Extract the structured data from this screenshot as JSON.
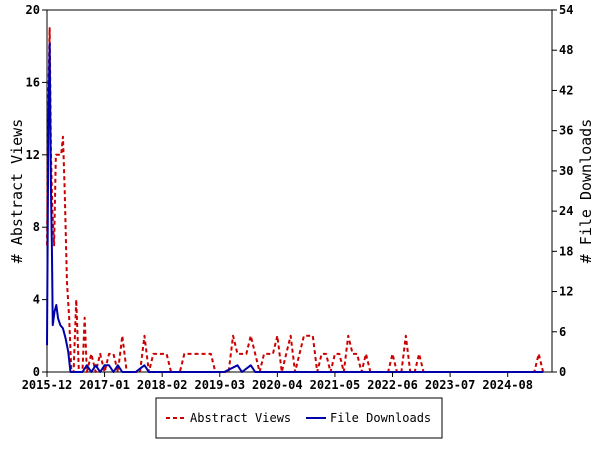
{
  "chart_data": {
    "type": "line",
    "title": "",
    "xlabel": "",
    "ylabel": "# Abstract Views",
    "y2label": "# File Downloads",
    "x_tick_labels": [
      "2015-12",
      "2017-01",
      "2018-02",
      "2019-03",
      "2020-04",
      "2021-05",
      "2022-06",
      "2023-07",
      "2024-08"
    ],
    "xlim_months": [
      0,
      114
    ],
    "ylim": [
      0,
      20
    ],
    "y2lim": [
      0,
      54
    ],
    "yticks": [
      0,
      4,
      8,
      12,
      16,
      20
    ],
    "y2ticks": [
      0,
      6,
      12,
      18,
      24,
      30,
      36,
      42,
      48,
      54
    ],
    "grid": false,
    "legend_position": "bottom",
    "series": [
      {
        "name": "Abstract Views",
        "axis": "left",
        "color": "#cc0000",
        "dash": "dashed",
        "points": [
          [
            0,
            7
          ],
          [
            0.3,
            15
          ],
          [
            0.6,
            19
          ],
          [
            0.9,
            12
          ],
          [
            1.2,
            9
          ],
          [
            1.6,
            7
          ],
          [
            2,
            12
          ],
          [
            2.6,
            12
          ],
          [
            3.2,
            12
          ],
          [
            3.6,
            13
          ],
          [
            4,
            10
          ],
          [
            4.5,
            5
          ],
          [
            5,
            3
          ],
          [
            5.5,
            0
          ],
          [
            6,
            0
          ],
          [
            6.6,
            4
          ],
          [
            7.2,
            0
          ],
          [
            8,
            0
          ],
          [
            8.5,
            3
          ],
          [
            9,
            0
          ],
          [
            10,
            1
          ],
          [
            11,
            0
          ],
          [
            12,
            1
          ],
          [
            13,
            0
          ],
          [
            14,
            1
          ],
          [
            15,
            1
          ],
          [
            16,
            0
          ],
          [
            17,
            2
          ],
          [
            18,
            0
          ],
          [
            19,
            0
          ],
          [
            20,
            0
          ],
          [
            21,
            0
          ],
          [
            22,
            2
          ],
          [
            23,
            0
          ],
          [
            24,
            1
          ],
          [
            25,
            1
          ],
          [
            26,
            1
          ],
          [
            27,
            1
          ],
          [
            28,
            0
          ],
          [
            29,
            0
          ],
          [
            30,
            0
          ],
          [
            31,
            1
          ],
          [
            32,
            1
          ],
          [
            33,
            1
          ],
          [
            34,
            1
          ],
          [
            35,
            1
          ],
          [
            36,
            1
          ],
          [
            37,
            1
          ],
          [
            38,
            0
          ],
          [
            39,
            0
          ],
          [
            40,
            0
          ],
          [
            41,
            0
          ],
          [
            42,
            2
          ],
          [
            43,
            1
          ],
          [
            44,
            1
          ],
          [
            45,
            1
          ],
          [
            46,
            2
          ],
          [
            47,
            1
          ],
          [
            48,
            0
          ],
          [
            49,
            1
          ],
          [
            50,
            1
          ],
          [
            51,
            1
          ],
          [
            52,
            2
          ],
          [
            53,
            0
          ],
          [
            54,
            1
          ],
          [
            55,
            2
          ],
          [
            56,
            0
          ],
          [
            57,
            1
          ],
          [
            58,
            2
          ],
          [
            59,
            2
          ],
          [
            60,
            2
          ],
          [
            61,
            0
          ],
          [
            62,
            1
          ],
          [
            63,
            1
          ],
          [
            64,
            0
          ],
          [
            65,
            1
          ],
          [
            66,
            1
          ],
          [
            67,
            0
          ],
          [
            68,
            2
          ],
          [
            69,
            1
          ],
          [
            70,
            1
          ],
          [
            71,
            0
          ],
          [
            72,
            1
          ],
          [
            73,
            0
          ],
          [
            74,
            0
          ],
          [
            75,
            0
          ],
          [
            76,
            0
          ],
          [
            77,
            0
          ],
          [
            78,
            1
          ],
          [
            79,
            0
          ],
          [
            80,
            0
          ],
          [
            81,
            2
          ],
          [
            82,
            0
          ],
          [
            83,
            0
          ],
          [
            84,
            1
          ],
          [
            85,
            0
          ],
          [
            86,
            0
          ],
          [
            87,
            0
          ],
          [
            88,
            0
          ],
          [
            89,
            0
          ],
          [
            90,
            0
          ],
          [
            91,
            0
          ],
          [
            92,
            0
          ],
          [
            93,
            0
          ],
          [
            94,
            0
          ],
          [
            95,
            0
          ],
          [
            96,
            0
          ],
          [
            97,
            0
          ],
          [
            98,
            0
          ],
          [
            99,
            0
          ],
          [
            100,
            0
          ],
          [
            101,
            0
          ],
          [
            102,
            0
          ],
          [
            103,
            0
          ],
          [
            104,
            0
          ],
          [
            105,
            0
          ],
          [
            106,
            0
          ],
          [
            107,
            0
          ],
          [
            108,
            0
          ],
          [
            109,
            0
          ],
          [
            110,
            0
          ],
          [
            111,
            1
          ],
          [
            112,
            0
          ]
        ]
      },
      {
        "name": "File Downloads",
        "axis": "right",
        "color": "#0000aa",
        "dash": "solid",
        "points": [
          [
            0,
            4
          ],
          [
            0.3,
            36
          ],
          [
            0.6,
            49
          ],
          [
            0.9,
            27
          ],
          [
            1.1,
            19
          ],
          [
            1.3,
            7
          ],
          [
            1.7,
            9
          ],
          [
            2.1,
            10
          ],
          [
            2.5,
            8
          ],
          [
            3,
            7
          ],
          [
            3.6,
            6.5
          ],
          [
            4.2,
            5
          ],
          [
            4.8,
            3
          ],
          [
            5.3,
            0
          ],
          [
            6,
            0
          ],
          [
            8,
            0
          ],
          [
            9,
            1
          ],
          [
            10,
            0
          ],
          [
            11,
            1
          ],
          [
            12,
            0
          ],
          [
            13,
            1
          ],
          [
            14,
            1
          ],
          [
            15,
            0
          ],
          [
            16,
            1
          ],
          [
            17,
            0
          ],
          [
            18,
            0
          ],
          [
            20,
            0
          ],
          [
            22,
            1
          ],
          [
            23,
            0
          ],
          [
            30,
            0
          ],
          [
            40,
            0
          ],
          [
            43,
            1
          ],
          [
            44,
            0
          ],
          [
            46,
            1
          ],
          [
            47,
            0
          ],
          [
            60,
            0
          ],
          [
            80,
            0
          ],
          [
            100,
            0
          ],
          [
            112,
            0
          ]
        ]
      }
    ]
  }
}
